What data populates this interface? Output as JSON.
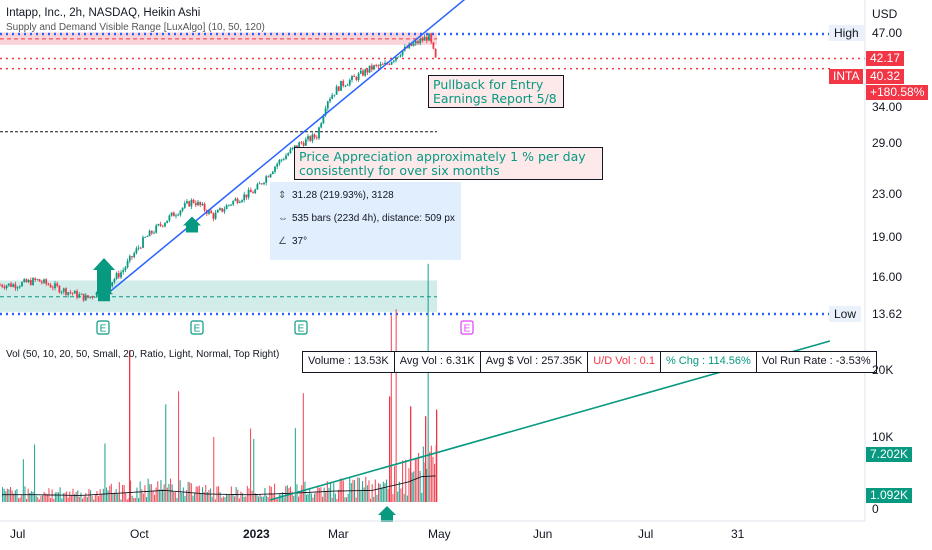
{
  "header": {
    "title": "Intapp, Inc., 2h, NASDAQ, Heikin Ashi",
    "indicator": "Supply and Demand Visible Range [LuxAlgo] (10, 50, 120)",
    "volume_indicator": "Vol (50, 10, 20, 50, Small, 20, Ratio, Light, Normal, Top Right)"
  },
  "price_axis": {
    "currency": "USD",
    "ticks": [
      "47.00",
      "42.17",
      "34.00",
      "29.00",
      "23.00",
      "19.00",
      "16.00",
      "13.62"
    ],
    "ticks_hidden_values": [
      47.0,
      42.17,
      34.0,
      29.0,
      23.0,
      19.0,
      16.0,
      13.62
    ],
    "high_label": "High",
    "low_label": "Low",
    "symbol": "INTA",
    "last_price": "40.32",
    "change": "+180.58%",
    "level_42": "42.17",
    "scale": "log"
  },
  "volume_axis": {
    "ticks": [
      "20K",
      "10K",
      "0"
    ],
    "tag_a": "7.202K",
    "tag_b": "1.092K"
  },
  "time_axis": {
    "labels": [
      "Jul",
      "Oct",
      "2023",
      "Mar",
      "May",
      "Jun",
      "Jul",
      "31"
    ]
  },
  "annotations": {
    "pullback_line1": "Pullback for Entry",
    "pullback_line2": "Earnings Report 5/8",
    "appreciation_line1": "Price Appreciation approximately  1 % per day",
    "appreciation_line2": "consistently for over six months"
  },
  "measure": {
    "price_range": "31.28 (219.93%), 3128",
    "bars": "535 bars (223d 4h), distance: 509 px",
    "angle": "37°"
  },
  "volume_stats": [
    {
      "label": "Volume : 13.53K",
      "color": "#131722"
    },
    {
      "label": "Avg Vol : 6.31K",
      "color": "#131722"
    },
    {
      "label": "Avg $ Vol : 257.35K",
      "color": "#131722"
    },
    {
      "label": "U/D Vol : 0.1",
      "color": "#f23645"
    },
    {
      "label": "% Chg : 114.56%",
      "color": "#089981"
    },
    {
      "label": "Vol Run Rate : -3.53%",
      "color": "#131722"
    }
  ],
  "earnings_marker": "E",
  "colors": {
    "up": "#089981",
    "down": "#f23645",
    "trendline": "#2962ff",
    "dotted_blue": "#2962ff",
    "dotted_red": "#f23645",
    "demand_zone": "#b2dfdb",
    "supply_zone": "#f7c6cb",
    "volume_trend": "#089981",
    "earnings_past": "#089981",
    "earnings_future": "#e040fb"
  },
  "chart_data": {
    "type": "line",
    "series": [
      {
        "x": [
          "2022-06-29",
          "2022-07-15",
          "2022-08-01",
          "2022-08-20",
          "2022-09-01",
          "2022-09-15",
          "2022-10-01",
          "2022-10-20",
          "2022-11-05",
          "2022-11-20",
          "2022-12-05",
          "2022-12-20",
          "2023-01-05",
          "2023-01-20",
          "2023-02-03",
          "2023-02-10",
          "2023-02-20",
          "2023-03-01",
          "2023-03-15",
          "2023-03-25",
          "2023-04-05",
          "2023-04-15",
          "2023-04-25",
          "2023-05-01"
        ],
        "values": [
          15.5,
          15.8,
          15.2,
          14.6,
          15.2,
          16.5,
          19.0,
          21.0,
          22.5,
          21.0,
          22.5,
          23.5,
          26.5,
          28.8,
          30.0,
          35.0,
          37.5,
          38.5,
          40.5,
          41.0,
          43.5,
          45.0,
          46.5,
          41.0
        ]
      }
    ],
    "volume_series": [
      {
        "x": [
          "2022-07",
          "2022-08",
          "2022-09",
          "2022-10",
          "2022-11",
          "2022-12",
          "2023-01",
          "2023-02",
          "2023-03",
          "2023-04-10",
          "2023-04-20",
          "2023-05-01"
        ],
        "values": [
          2000,
          1800,
          2500,
          3200,
          2200,
          2000,
          2400,
          3000,
          3200,
          5500,
          7000,
          7200
        ]
      }
    ],
    "ylim": [
      13.0,
      49.0
    ],
    "volume_ylim": [
      0,
      22000
    ],
    "reference_lines": {
      "high": 47.0,
      "low": 13.62,
      "level": 42.17,
      "last": 40.32,
      "shelf": 30.5
    },
    "grid": false
  }
}
